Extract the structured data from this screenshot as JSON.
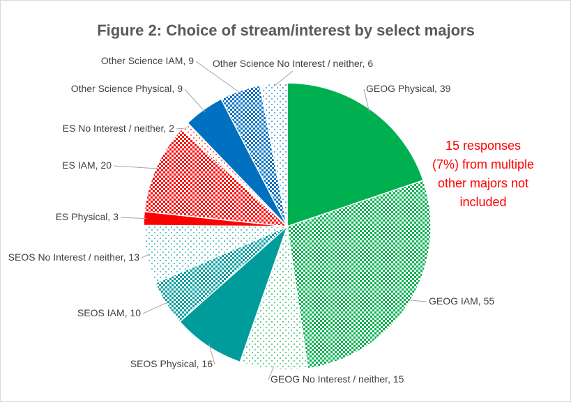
{
  "chart_data": {
    "type": "pie",
    "title": "Figure 2: Choice of stream/interest by select majors",
    "categories": [
      "GEOG Physical",
      "GEOG IAM",
      "GEOG No Interest / neither",
      "SEOS Physical",
      "SEOS IAM",
      "SEOS No Interest / neither",
      "ES Physical",
      "ES IAM",
      "ES No Interest / neither",
      "Other Science Physical",
      "Other Science IAM",
      "Other Science No Interest / neither"
    ],
    "values": [
      39,
      55,
      15,
      16,
      10,
      13,
      3,
      20,
      2,
      9,
      9,
      6
    ],
    "colors": [
      "#00b050",
      "#00b050",
      "#00b050",
      "#009c9c",
      "#009c9c",
      "#009c9c",
      "#ff0000",
      "#ff0000",
      "#ff0000",
      "#0070c0",
      "#0070c0",
      "#0070c0"
    ],
    "patterns": [
      "solid",
      "checker",
      "dots",
      "solid",
      "checker",
      "dots",
      "solid",
      "checker",
      "dots",
      "solid",
      "checker",
      "dots"
    ],
    "annotation": "15 responses (7%) from multiple other majors not included"
  }
}
